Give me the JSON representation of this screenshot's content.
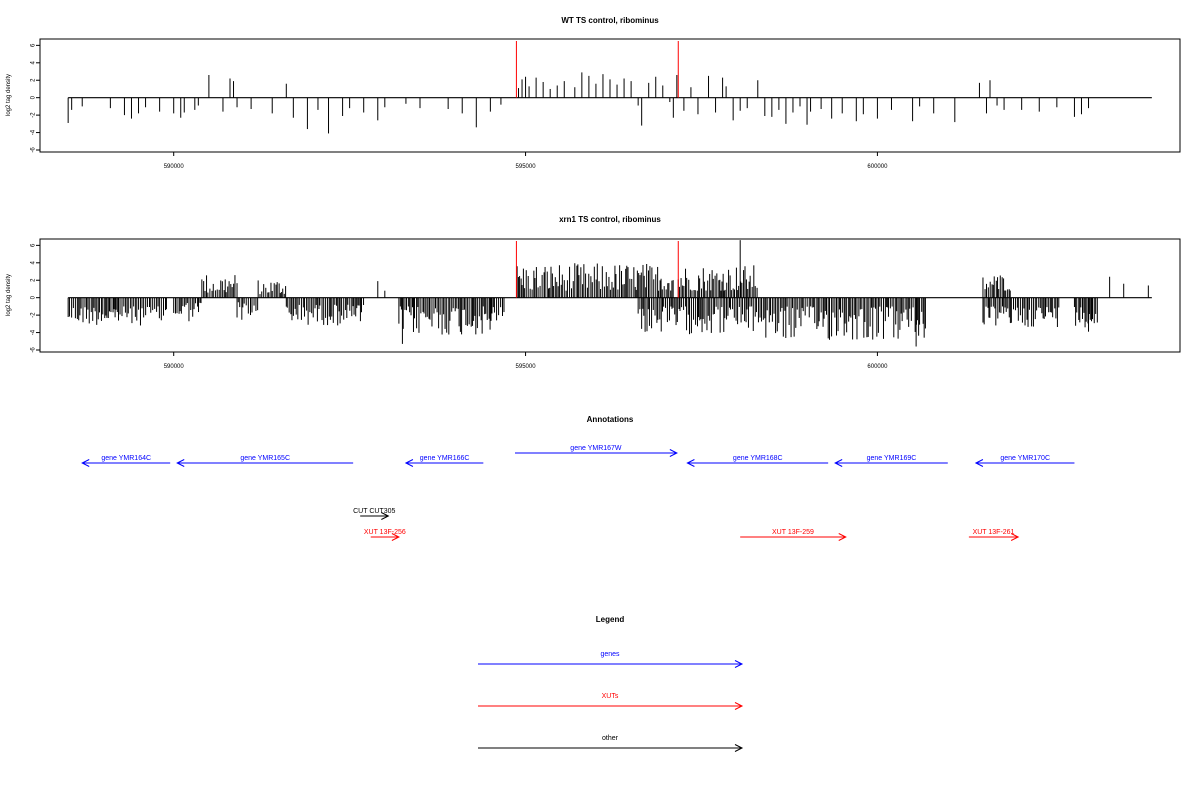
{
  "chart_data": [
    {
      "type": "bar",
      "title": "WT TS control, ribominus",
      "ylabel": "log2 tag density",
      "xlabel": "",
      "xlim": [
        588100,
        604300
      ],
      "ylim": [
        -6,
        6.5
      ],
      "yticks": [
        "6",
        "4",
        "2",
        "0",
        "-2",
        "-4",
        "-6"
      ],
      "ytick_values": [
        6,
        4,
        2,
        0,
        -2,
        -4,
        -6
      ],
      "xticks": [
        "590000",
        "595000",
        "600000"
      ],
      "xtick_values": [
        590000,
        595000,
        600000
      ],
      "baseline": [
        588500,
        603900
      ],
      "markers": [
        {
          "x": 594870,
          "color": "#ff0000"
        },
        {
          "x": 597170,
          "color": "#ff0000"
        }
      ],
      "bar_color": "#000000",
      "bars": [
        [
          588500,
          -2.9
        ],
        [
          588550,
          -1.4
        ],
        [
          588700,
          -1.0
        ],
        [
          589100,
          -1.2
        ],
        [
          589300,
          -2.0
        ],
        [
          589400,
          -2.4
        ],
        [
          589500,
          -1.8
        ],
        [
          589600,
          -1.1
        ],
        [
          589800,
          -1.6
        ],
        [
          590000,
          -1.8
        ],
        [
          590100,
          -2.3
        ],
        [
          590150,
          -1.7
        ],
        [
          590300,
          -1.4
        ],
        [
          590350,
          -0.9
        ],
        [
          590500,
          2.6
        ],
        [
          590700,
          -1.6
        ],
        [
          590800,
          2.2
        ],
        [
          590850,
          1.9
        ],
        [
          590900,
          -1.1
        ],
        [
          591100,
          -1.3
        ],
        [
          591400,
          -1.8
        ],
        [
          591600,
          1.6
        ],
        [
          591700,
          -2.3
        ],
        [
          591900,
          -3.6
        ],
        [
          592050,
          -1.4
        ],
        [
          592200,
          -4.1
        ],
        [
          592400,
          -2.1
        ],
        [
          592500,
          -1.2
        ],
        [
          592700,
          -1.7
        ],
        [
          592900,
          -2.6
        ],
        [
          593000,
          -1.1
        ],
        [
          593300,
          -0.7
        ],
        [
          593500,
          -1.2
        ],
        [
          593900,
          -1.3
        ],
        [
          594100,
          -1.8
        ],
        [
          594300,
          -3.4
        ],
        [
          594500,
          -1.6
        ],
        [
          594650,
          -0.8
        ],
        [
          594900,
          1.1
        ],
        [
          594950,
          2.1
        ],
        [
          595000,
          2.4
        ],
        [
          595050,
          1.3
        ],
        [
          595150,
          2.3
        ],
        [
          595250,
          1.8
        ],
        [
          595350,
          1.0
        ],
        [
          595450,
          1.4
        ],
        [
          595550,
          1.9
        ],
        [
          595700,
          1.2
        ],
        [
          595800,
          2.9
        ],
        [
          595900,
          2.5
        ],
        [
          596000,
          1.6
        ],
        [
          596100,
          2.7
        ],
        [
          596200,
          2.1
        ],
        [
          596300,
          1.5
        ],
        [
          596400,
          2.2
        ],
        [
          596500,
          1.9
        ],
        [
          596600,
          -0.9
        ],
        [
          596650,
          -3.2
        ],
        [
          596750,
          1.7
        ],
        [
          596850,
          2.4
        ],
        [
          596950,
          1.4
        ],
        [
          597050,
          -0.5
        ],
        [
          597100,
          -2.3
        ],
        [
          597150,
          2.6
        ],
        [
          597250,
          -1.5
        ],
        [
          597350,
          1.2
        ],
        [
          597450,
          -1.9
        ],
        [
          597600,
          2.5
        ],
        [
          597700,
          -1.7
        ],
        [
          597800,
          2.3
        ],
        [
          597850,
          1.3
        ],
        [
          597950,
          -2.6
        ],
        [
          598050,
          -1.5
        ],
        [
          598150,
          -1.2
        ],
        [
          598300,
          2.0
        ],
        [
          598400,
          -2.1
        ],
        [
          598500,
          -2.2
        ],
        [
          598600,
          -1.4
        ],
        [
          598700,
          -3.0
        ],
        [
          598800,
          -1.7
        ],
        [
          598900,
          -1.0
        ],
        [
          599000,
          -3.1
        ],
        [
          599050,
          -1.6
        ],
        [
          599200,
          -1.3
        ],
        [
          599350,
          -2.4
        ],
        [
          599500,
          -1.8
        ],
        [
          599700,
          -2.7
        ],
        [
          599800,
          -1.9
        ],
        [
          600000,
          -2.4
        ],
        [
          600200,
          -1.4
        ],
        [
          600500,
          -2.7
        ],
        [
          600600,
          -1.0
        ],
        [
          600800,
          -1.8
        ],
        [
          601100,
          -2.8
        ],
        [
          601450,
          1.7
        ],
        [
          601550,
          -1.8
        ],
        [
          601600,
          2.0
        ],
        [
          601700,
          -0.9
        ],
        [
          601800,
          -1.4
        ],
        [
          602050,
          -1.4
        ],
        [
          602300,
          -1.6
        ],
        [
          602550,
          -1.1
        ],
        [
          602800,
          -2.2
        ],
        [
          602900,
          -1.9
        ],
        [
          603000,
          -1.2
        ]
      ]
    },
    {
      "type": "bar",
      "title": "xrn1 TS control, ribominus",
      "ylabel": "log2 tag density",
      "xlabel": "",
      "xlim": [
        588100,
        604300
      ],
      "ylim": [
        -6,
        6.5
      ],
      "yticks": [
        "6",
        "4",
        "2",
        "0",
        "-2",
        "-4",
        "-6"
      ],
      "ytick_values": [
        6,
        4,
        2,
        0,
        -2,
        -4,
        -6
      ],
      "xticks": [
        "590000",
        "595000",
        "600000"
      ],
      "xtick_values": [
        590000,
        595000,
        600000
      ],
      "baseline": [
        588500,
        603900
      ],
      "markers": [
        {
          "x": 594870,
          "color": "#ff0000"
        },
        {
          "x": 597170,
          "color": "#ff0000"
        }
      ],
      "bar_color": "#000000",
      "dense": {
        "step": 22,
        "regions": [
          [
            588500,
            589900,
            -1,
            1.0,
            3.2
          ],
          [
            590000,
            590400,
            -1,
            0.5,
            2.8
          ],
          [
            590400,
            590900,
            1,
            0.5,
            2.8
          ],
          [
            590900,
            591200,
            -1,
            0.5,
            2.6
          ],
          [
            591200,
            591600,
            1,
            0.4,
            2.2
          ],
          [
            591600,
            592700,
            -1,
            0.8,
            3.2
          ],
          [
            593200,
            594700,
            -1,
            1.0,
            4.4
          ],
          [
            594880,
            597100,
            1,
            0.8,
            4.0
          ],
          [
            597170,
            598300,
            1,
            0.8,
            3.8
          ],
          [
            596600,
            598400,
            -1,
            1.0,
            4.2
          ],
          [
            598400,
            600700,
            -1,
            1.0,
            5.0
          ],
          [
            601500,
            601900,
            1,
            0.8,
            2.8
          ],
          [
            601500,
            602600,
            -1,
            1.0,
            3.4
          ],
          [
            602800,
            603150,
            -1,
            1.0,
            3.4
          ]
        ]
      },
      "bars": [
        [
          592900,
          1.9
        ],
        [
          593000,
          0.8
        ],
        [
          598050,
          6.6
        ],
        [
          603300,
          2.4
        ],
        [
          603500,
          1.6
        ],
        [
          603850,
          1.4
        ],
        [
          600550,
          -5.6
        ],
        [
          593250,
          -5.3
        ],
        [
          603000,
          -3.9
        ]
      ]
    },
    {
      "type": "annotation_track",
      "title": "Annotations",
      "features": [
        {
          "label": "gene YMR164C",
          "start": 588700,
          "end": 589950,
          "direction": "reverse",
          "kind": "gene",
          "row": 2,
          "color": "#0000ff"
        },
        {
          "label": "gene YMR165C",
          "start": 590050,
          "end": 592550,
          "direction": "reverse",
          "kind": "gene",
          "row": 2,
          "color": "#0000ff"
        },
        {
          "label": "gene YMR166C",
          "start": 593300,
          "end": 594400,
          "direction": "reverse",
          "kind": "gene",
          "row": 2,
          "color": "#0000ff"
        },
        {
          "label": "gene YMR167W",
          "start": 594850,
          "end": 597150,
          "direction": "forward",
          "kind": "gene",
          "row": 1,
          "color": "#0000ff"
        },
        {
          "label": "gene YMR168C",
          "start": 597300,
          "end": 599300,
          "direction": "reverse",
          "kind": "gene",
          "row": 2,
          "color": "#0000ff"
        },
        {
          "label": "gene YMR169C",
          "start": 599400,
          "end": 601000,
          "direction": "reverse",
          "kind": "gene",
          "row": 2,
          "color": "#0000ff"
        },
        {
          "label": "gene YMR170C",
          "start": 601400,
          "end": 602800,
          "direction": "reverse",
          "kind": "gene",
          "row": 2,
          "color": "#0000ff"
        },
        {
          "label": "CUT CUT305",
          "start": 592650,
          "end": 593050,
          "direction": "forward",
          "kind": "other",
          "row": 3,
          "color": "#000000"
        },
        {
          "label": "XUT 13F-256",
          "start": 592800,
          "end": 593200,
          "direction": "forward",
          "kind": "xut",
          "row": 4,
          "color": "#ff0000"
        },
        {
          "label": "XUT 13F-259",
          "start": 598050,
          "end": 599550,
          "direction": "forward",
          "kind": "xut",
          "row": 4,
          "color": "#ff0000"
        },
        {
          "label": "XUT 13F-261",
          "start": 601300,
          "end": 602000,
          "direction": "forward",
          "kind": "xut",
          "row": 4,
          "color": "#ff0000"
        }
      ]
    },
    {
      "type": "legend",
      "title": "Legend",
      "items": [
        {
          "label": "genes",
          "color": "#0000ff"
        },
        {
          "label": "XUTs",
          "color": "#ff0000"
        },
        {
          "label": "other",
          "color": "#000000"
        }
      ]
    }
  ]
}
